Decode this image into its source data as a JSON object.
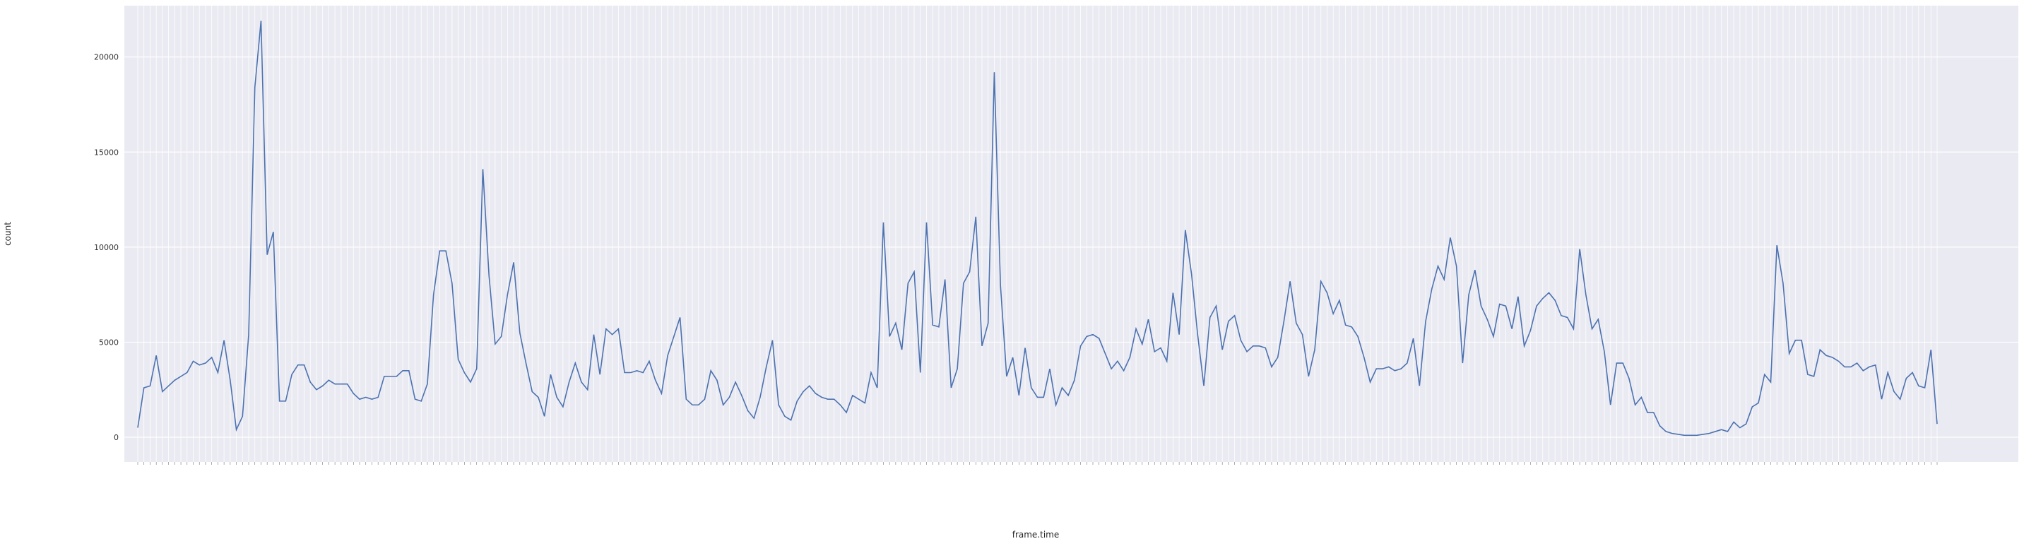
{
  "chart_data": {
    "type": "line",
    "title": "",
    "xlabel": "frame.time",
    "ylabel": "count",
    "ylim": [
      -1300,
      22700
    ],
    "y_ticks": [
      0,
      5000,
      10000,
      15000,
      20000
    ],
    "grid": true,
    "legend": "none",
    "x_tick_labels_note": "x tick labels are rotated and unreadable; points are in sequential order",
    "colors": {
      "plot_background": "#eaeaf2",
      "grid": "#ffffff",
      "line": "#4c72b0"
    },
    "series": [
      {
        "values": [
          500,
          2600,
          2700,
          4300,
          2400,
          2700,
          3000,
          3200,
          3400,
          4000,
          3800,
          3900,
          4200,
          3400,
          5100,
          3000,
          400,
          1100,
          5400,
          18400,
          21900,
          9600,
          10800,
          1900,
          1900,
          3300,
          3800,
          3800,
          2900,
          2500,
          2700,
          3000,
          2800,
          2800,
          2800,
          2300,
          2000,
          2100,
          2000,
          2100,
          3200,
          3200,
          3200,
          3500,
          3500,
          2000,
          1900,
          2800,
          7500,
          9800,
          9800,
          8100,
          4100,
          3400,
          2900,
          3600,
          14100,
          8500,
          4900,
          5300,
          7500,
          9200,
          5500,
          3900,
          2400,
          2100,
          1100,
          3300,
          2100,
          1600,
          2900,
          3900,
          2900,
          2500,
          5400,
          3300,
          5700,
          5400,
          5700,
          3400,
          3400,
          3500,
          3400,
          4000,
          3000,
          2300,
          4300,
          5300,
          6300,
          2000,
          1700,
          1700,
          2000,
          3500,
          3000,
          1700,
          2100,
          2900,
          2200,
          1400,
          1000,
          2100,
          3700,
          5100,
          1700,
          1100,
          900,
          1900,
          2400,
          2700,
          2300,
          2100,
          2000,
          2000,
          1700,
          1300,
          2200,
          2000,
          1800,
          3400,
          2600,
          11300,
          5300,
          6000,
          4600,
          8100,
          8700,
          3400,
          11300,
          5900,
          5800,
          8300,
          2600,
          3600,
          8100,
          8700,
          11600,
          4800,
          6000,
          19200,
          8000,
          3200,
          4200,
          2200,
          4700,
          2600,
          2100,
          2100,
          3600,
          1700,
          2600,
          2200,
          3000,
          4800,
          5300,
          5400,
          5200,
          4400,
          3600,
          4000,
          3500,
          4200,
          5700,
          4900,
          6200,
          4500,
          4700,
          4000,
          7600,
          5400,
          10900,
          8600,
          5400,
          2700,
          6300,
          6900,
          4600,
          6100,
          6400,
          5100,
          4500,
          4800,
          4800,
          4700,
          3700,
          4200,
          6100,
          8200,
          6000,
          5400,
          3200,
          4600,
          8200,
          7600,
          6500,
          7200,
          5900,
          5800,
          5300,
          4200,
          2900,
          3600,
          3600,
          3700,
          3500,
          3600,
          3900,
          5200,
          2700,
          6100,
          7800,
          9000,
          8300,
          10500,
          9000,
          3900,
          7500,
          8800,
          6900,
          6200,
          5300,
          7000,
          6900,
          5700,
          7400,
          4800,
          5600,
          6900,
          7300,
          7600,
          7200,
          6400,
          6300,
          5700,
          9900,
          7500,
          5700,
          6200,
          4500,
          1700,
          3900,
          3900,
          3100,
          1700,
          2100,
          1300,
          1300,
          600,
          300,
          200,
          150,
          100,
          100,
          100,
          150,
          200,
          300,
          400,
          300,
          800,
          500,
          700,
          1600,
          1800,
          3300,
          2900,
          10100,
          8100,
          4400,
          5100,
          5100,
          3300,
          3200,
          4600,
          4300,
          4200,
          4000,
          3700,
          3700,
          3900,
          3500,
          3700,
          3800,
          2000,
          3400,
          2400,
          2000,
          3100,
          3400,
          2700,
          2600,
          4600,
          700
        ]
      }
    ]
  }
}
